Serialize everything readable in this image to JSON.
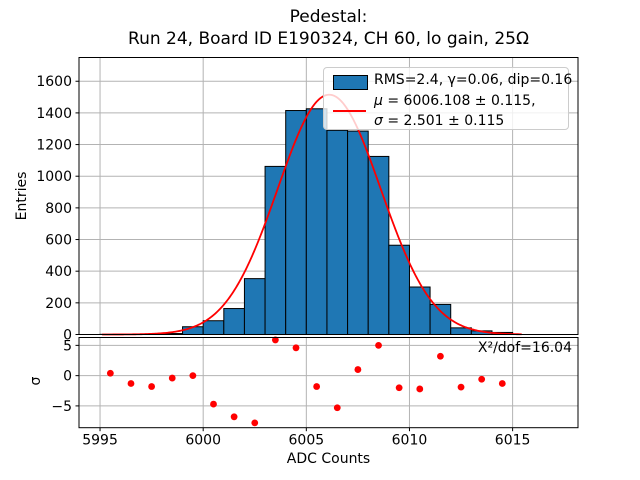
{
  "figure": {
    "title_line1": "Pedestal:",
    "title_line2": "Run 24, Board ID E190324, CH 60, lo gain, 25Ω"
  },
  "chart_data": {
    "type": "bar",
    "subtype": "histogram-with-fit-and-residuals",
    "xlabel": "ADC Counts",
    "xlim": [
      5993.98,
      6018.17
    ],
    "xticks": [
      5995,
      6000,
      6005,
      6010,
      6015
    ],
    "grid": true,
    "grid_color": "#b3b3b3",
    "main_panel": {
      "ylabel": "Entries",
      "ylim": [
        0,
        1750
      ],
      "yticks": [
        0,
        200,
        400,
        600,
        800,
        1000,
        1200,
        1400,
        1600
      ],
      "histogram": {
        "bin_start": 5995,
        "bin_width": 1,
        "counts": [
          1,
          0,
          2,
          6,
          49,
          87,
          164,
          353,
          1062,
          1415,
          1426,
          1290,
          1285,
          1125,
          564,
          300,
          190,
          42,
          23,
          13
        ],
        "fill_color": "#1f77b4",
        "edge_color": "#000000"
      },
      "fit_curve": {
        "color": "#ff0000",
        "mu": 6006.108,
        "sigma": 2.501,
        "amplitude": 1515,
        "x_range": [
          5995.1,
          6015.5
        ]
      },
      "legend": {
        "hist_label": "RMS=2.4, γ=0.06, dip=0.16",
        "fit_mu_symbol": "μ",
        "fit_mu_text": " = 6006.108 ± 0.115,",
        "fit_sigma_symbol": "σ",
        "fit_sigma_text": " = 2.501 ± 0.115"
      }
    },
    "residual_panel": {
      "ylabel": "σ",
      "ylim": [
        -8.6,
        6.3
      ],
      "yticks": [
        5,
        0,
        -5
      ],
      "annotation": "X²/dof=16.04",
      "marker_color": "#ff0000",
      "points_x": [
        5995.5,
        5996.5,
        5997.5,
        5998.5,
        5999.5,
        6000.5,
        6001.5,
        6002.5,
        6003.5,
        6004.5,
        6005.5,
        6006.5,
        6007.5,
        6008.5,
        6009.5,
        6010.5,
        6011.5,
        6012.5,
        6013.5,
        6014.5
      ],
      "points_y": [
        0.4,
        -1.3,
        -1.8,
        -0.4,
        0.0,
        -4.7,
        -6.8,
        -7.8,
        5.9,
        4.6,
        -1.8,
        -5.3,
        1.0,
        5.0,
        -2.0,
        -2.2,
        3.2,
        -1.9,
        -0.6,
        -1.3
      ]
    }
  }
}
